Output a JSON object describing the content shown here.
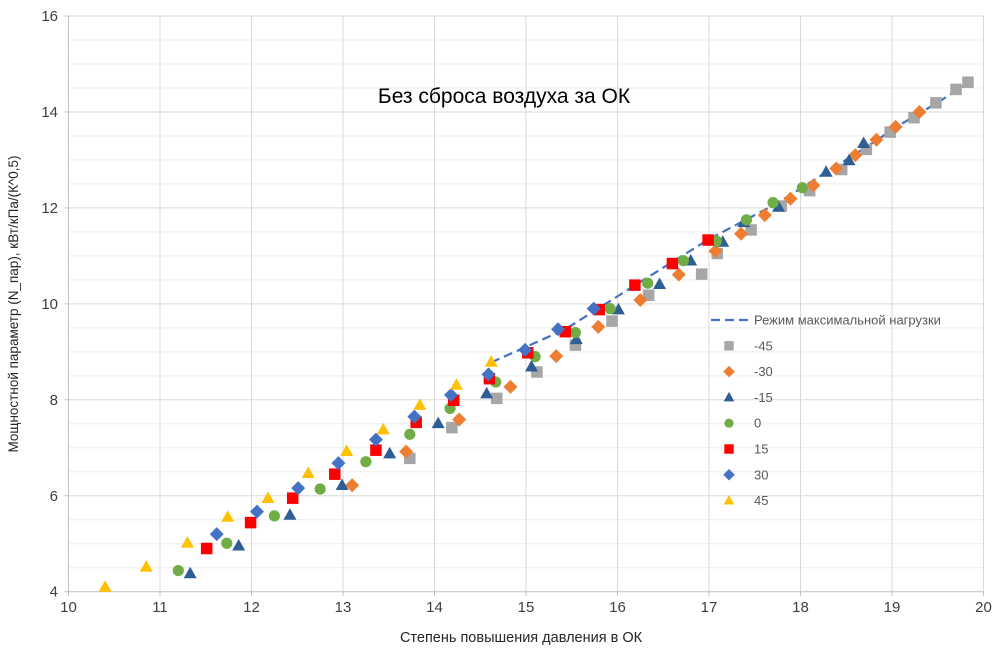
{
  "chart_data": {
    "type": "scatter",
    "title": "Без сброса воздуха за ОК",
    "xlabel": "Степень повышения давления в ОК",
    "ylabel": "Мощностной параметр (N_пар), кВт/кПа/(К^0,5)",
    "x_axis": {
      "min": 10,
      "max": 20,
      "ticks": [
        10,
        11,
        12,
        13,
        14,
        15,
        16,
        17,
        18,
        19,
        20
      ]
    },
    "y_axis": {
      "min": 4,
      "max": 16,
      "ticks": [
        4,
        6,
        8,
        10,
        12,
        14,
        16
      ],
      "minor_step": 0.5
    },
    "grid": {
      "horizontal_minor": true,
      "vertical_major": true
    },
    "legend": {
      "position": "right-middle"
    },
    "series": [
      {
        "name": "Режим максимальной нагрузки",
        "type": "dashed-line",
        "color": "#4472C4",
        "points": [
          [
            14.62,
            8.78
          ],
          [
            15.43,
            9.47
          ],
          [
            16.21,
            10.41
          ],
          [
            17.0,
            11.35
          ],
          [
            17.75,
            12.1
          ],
          [
            18.31,
            12.78
          ],
          [
            18.73,
            13.28
          ],
          [
            19.06,
            13.7
          ],
          [
            19.5,
            14.2
          ],
          [
            19.85,
            14.62
          ]
        ]
      },
      {
        "name": "-45",
        "type": "scatter",
        "marker": "square",
        "color": "#A6A6A6",
        "points": [
          [
            13.73,
            6.78
          ],
          [
            14.19,
            7.42
          ],
          [
            14.68,
            8.03
          ],
          [
            15.12,
            8.58
          ],
          [
            15.54,
            9.14
          ],
          [
            15.94,
            9.64
          ],
          [
            16.34,
            10.18
          ],
          [
            16.92,
            10.62
          ],
          [
            17.09,
            11.05
          ],
          [
            17.46,
            11.54
          ],
          [
            17.79,
            12.04
          ],
          [
            18.1,
            12.36
          ],
          [
            18.45,
            12.8
          ],
          [
            18.72,
            13.22
          ],
          [
            18.98,
            13.58
          ],
          [
            19.24,
            13.88
          ],
          [
            19.48,
            14.19
          ],
          [
            19.7,
            14.47
          ],
          [
            19.83,
            14.62
          ]
        ]
      },
      {
        "name": "-30",
        "type": "scatter",
        "marker": "diamond",
        "color": "#ED7D31",
        "points": [
          [
            13.1,
            6.22
          ],
          [
            13.69,
            6.92
          ],
          [
            14.27,
            7.59
          ],
          [
            14.83,
            8.27
          ],
          [
            15.33,
            8.91
          ],
          [
            15.79,
            9.52
          ],
          [
            16.25,
            10.08
          ],
          [
            16.67,
            10.61
          ],
          [
            17.07,
            11.1
          ],
          [
            17.35,
            11.46
          ],
          [
            17.61,
            11.85
          ],
          [
            17.89,
            12.19
          ],
          [
            18.14,
            12.47
          ],
          [
            18.39,
            12.82
          ],
          [
            18.6,
            13.1
          ],
          [
            18.83,
            13.42
          ],
          [
            19.04,
            13.69
          ],
          [
            19.3,
            14.0
          ]
        ]
      },
      {
        "name": "-15",
        "type": "scatter",
        "marker": "triangle",
        "color": "#2E5E95",
        "points": [
          [
            11.33,
            4.38
          ],
          [
            11.86,
            4.96
          ],
          [
            12.42,
            5.6
          ],
          [
            12.99,
            6.22
          ],
          [
            13.51,
            6.88
          ],
          [
            14.04,
            7.51
          ],
          [
            14.57,
            8.13
          ],
          [
            15.06,
            8.69
          ],
          [
            15.55,
            9.26
          ],
          [
            16.01,
            9.88
          ],
          [
            16.46,
            10.41
          ],
          [
            16.8,
            10.9
          ],
          [
            17.15,
            11.29
          ],
          [
            17.38,
            11.7
          ],
          [
            17.76,
            12.02
          ],
          [
            18.28,
            12.75
          ],
          [
            18.53,
            12.99
          ],
          [
            18.69,
            13.35
          ]
        ]
      },
      {
        "name": "0",
        "type": "scatter",
        "marker": "circle",
        "color": "#70AD47",
        "points": [
          [
            11.2,
            4.44
          ],
          [
            11.73,
            5.01
          ],
          [
            12.25,
            5.58
          ],
          [
            12.75,
            6.14
          ],
          [
            13.25,
            6.71
          ],
          [
            13.73,
            7.28
          ],
          [
            14.17,
            7.82
          ],
          [
            14.67,
            8.37
          ],
          [
            15.1,
            8.9
          ],
          [
            15.54,
            9.4
          ],
          [
            15.92,
            9.9
          ],
          [
            16.33,
            10.43
          ],
          [
            16.72,
            10.9
          ],
          [
            17.08,
            11.31
          ],
          [
            17.41,
            11.75
          ],
          [
            17.7,
            12.11
          ],
          [
            18.02,
            12.42
          ]
        ]
      },
      {
        "name": "15",
        "type": "scatter",
        "marker": "square",
        "color": "#FF0000",
        "points": [
          [
            11.51,
            4.9
          ],
          [
            11.99,
            5.44
          ],
          [
            12.45,
            5.95
          ],
          [
            12.91,
            6.45
          ],
          [
            13.36,
            6.95
          ],
          [
            13.8,
            7.53
          ],
          [
            14.21,
            7.99
          ],
          [
            14.6,
            8.44
          ],
          [
            15.02,
            8.98
          ],
          [
            15.43,
            9.42
          ],
          [
            15.8,
            9.88
          ],
          [
            16.19,
            10.39
          ],
          [
            16.6,
            10.84
          ],
          [
            16.99,
            11.33
          ]
        ]
      },
      {
        "name": "30",
        "type": "scatter",
        "marker": "diamond",
        "color": "#4472C4",
        "points": [
          [
            11.62,
            5.2
          ],
          [
            12.06,
            5.67
          ],
          [
            12.51,
            6.16
          ],
          [
            12.95,
            6.68
          ],
          [
            13.36,
            7.17
          ],
          [
            13.78,
            7.65
          ],
          [
            14.18,
            8.1
          ],
          [
            14.59,
            8.53
          ],
          [
            14.99,
            9.04
          ],
          [
            15.35,
            9.47
          ],
          [
            15.74,
            9.9
          ]
        ]
      },
      {
        "name": "45",
        "type": "scatter",
        "marker": "triangle",
        "color": "#FFC000",
        "points": [
          [
            10.4,
            4.1
          ],
          [
            10.85,
            4.52
          ],
          [
            11.3,
            5.02
          ],
          [
            11.74,
            5.56
          ],
          [
            12.18,
            5.95
          ],
          [
            12.62,
            6.47
          ],
          [
            13.04,
            6.93
          ],
          [
            13.44,
            7.38
          ],
          [
            13.84,
            7.89
          ],
          [
            14.24,
            8.31
          ],
          [
            14.62,
            8.79
          ]
        ]
      }
    ],
    "style": {
      "axis_line_color": "#BFBFBF",
      "major_gridline_color": "#D9D9D9",
      "minor_gridline_color": "#EDEDED",
      "tick_label_color": "#404040",
      "axis_title_color": "#262626",
      "title_color": "#000000",
      "legend_text_color": "#595959"
    }
  }
}
